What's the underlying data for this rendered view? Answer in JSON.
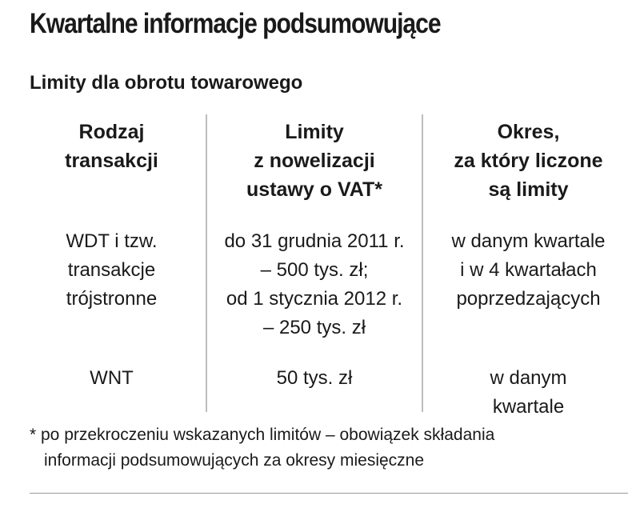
{
  "title": "Kwartalne informacje podsumowujące",
  "subtitle": "Limity dla obrotu towarowego",
  "table": {
    "headers": [
      [
        "Rodzaj",
        "transakcji"
      ],
      [
        "Limity",
        "z nowelizacji",
        "ustawy o VAT*"
      ],
      [
        "Okres,",
        "za który liczone",
        "są limity"
      ]
    ],
    "rows": [
      [
        [
          "WDT i tzw.",
          "transakcje",
          "trójstronne"
        ],
        [
          "do 31 grudnia 2011 r.",
          "– 500 tys. zł;",
          "od 1 stycznia 2012 r.",
          "– 250 tys. zł"
        ],
        [
          "w danym kwartale",
          "i w 4 kwartałach",
          "poprzedzających"
        ]
      ],
      [
        [
          "WNT"
        ],
        [
          "50 tys. zł"
        ],
        [
          "w danym",
          "kwartale"
        ]
      ]
    ]
  },
  "footnote": [
    "* po przekroczeniu wskazanych limitów – obowiązek składania",
    "informacji podsumowujących za okresy miesięczne"
  ]
}
